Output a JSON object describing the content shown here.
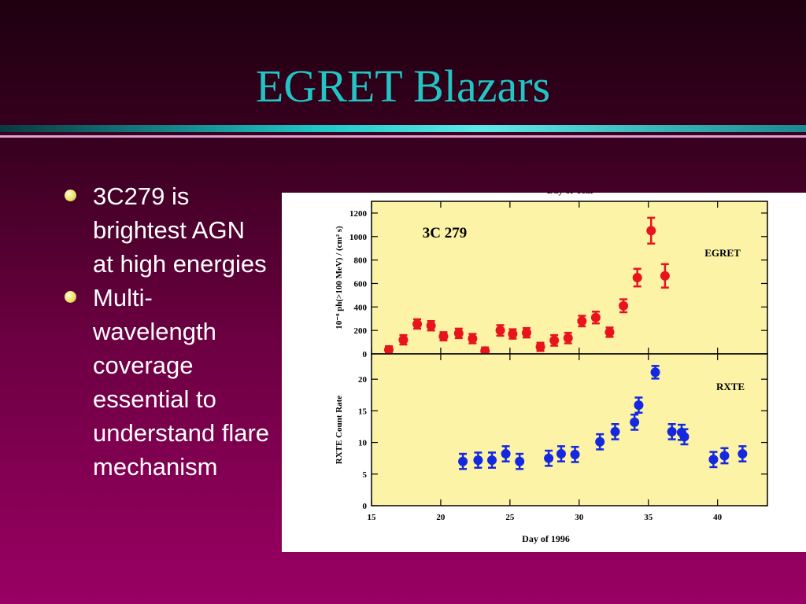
{
  "title": "EGRET Blazars",
  "bullets": [
    "3C279 is brightest AGN at high energies",
    "Multi-wavelength coverage essential to understand flare mechanism"
  ],
  "chart_data": [
    {
      "type": "scatter",
      "annotation": "3C 279",
      "ylabel": "10⁻⁸ ph(>100 MeV) / (cm² s)",
      "x2label": "Day of Year",
      "xlim": [
        15,
        43.6
      ],
      "xticks": [
        15,
        20,
        25,
        30,
        35,
        40
      ],
      "ylim": [
        0,
        1300
      ],
      "yticks": [
        0,
        200,
        400,
        600,
        800,
        1000,
        1200
      ],
      "series": [
        {
          "name": "EGRET",
          "color": "#e8141c",
          "x": [
            16.25,
            17.3,
            18.3,
            19.3,
            20.2,
            21.3,
            22.3,
            23.2,
            24.3,
            25.2,
            26.2,
            27.2,
            28.2,
            29.2,
            30.2,
            31.2,
            32.2,
            33.2,
            34.2,
            35.2,
            36.2
          ],
          "values": [
            35,
            120,
            255,
            240,
            150,
            175,
            130,
            25,
            200,
            170,
            180,
            60,
            115,
            135,
            280,
            310,
            185,
            410,
            650,
            1050,
            665
          ],
          "errors": [
            30,
            40,
            40,
            40,
            35,
            40,
            40,
            30,
            45,
            40,
            40,
            35,
            45,
            45,
            45,
            50,
            40,
            55,
            75,
            110,
            100
          ]
        }
      ]
    },
    {
      "type": "scatter",
      "ylabel": "RXTE Count Rate",
      "xlabel": "Day of 1996",
      "xlim": [
        15,
        43.6
      ],
      "xticks": [
        15,
        20,
        25,
        30,
        35,
        40
      ],
      "ylim": [
        0,
        24
      ],
      "yticks": [
        0,
        5,
        10,
        15,
        20
      ],
      "series": [
        {
          "name": "RXTE",
          "color": "#1428e0",
          "x": [
            21.6,
            22.7,
            23.7,
            24.7,
            25.7,
            27.8,
            28.7,
            29.7,
            31.5,
            32.6,
            34.0,
            34.3,
            35.5,
            36.7,
            37.4,
            37.6,
            39.7,
            40.5,
            41.8
          ],
          "values": [
            7.0,
            7.2,
            7.2,
            8.2,
            7.0,
            7.5,
            8.2,
            8.1,
            10.1,
            11.7,
            13.2,
            15.9,
            21.1,
            11.7,
            11.6,
            10.9,
            7.3,
            7.9,
            8.2
          ],
          "errors": [
            1.2,
            1.2,
            1.2,
            1.2,
            1.2,
            1.2,
            1.2,
            1.2,
            1.2,
            1.2,
            1.2,
            1.2,
            1.0,
            1.2,
            1.2,
            1.2,
            1.2,
            1.2,
            1.2
          ]
        }
      ]
    }
  ]
}
